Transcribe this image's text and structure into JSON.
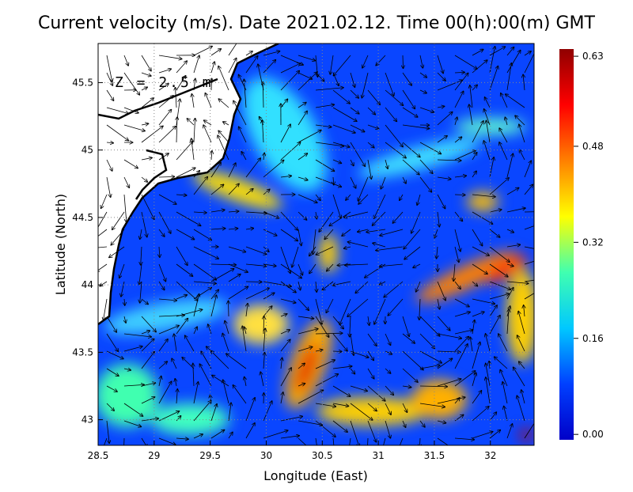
{
  "chart_data": {
    "type": "heatmap",
    "title": "Current velocity (m/s). Date 2021.02.12. Time 00(h):00(m) GMT",
    "annotation": "Z = 2.5 m",
    "xlabel": "Longitude (East)",
    "ylabel": "Latitude (North)",
    "xlim": [
      28.5,
      32.39
    ],
    "ylim": [
      42.81,
      45.79
    ],
    "xticks": [
      28.5,
      29,
      29.5,
      30,
      30.5,
      31,
      31.5,
      32
    ],
    "yticks": [
      43,
      43.5,
      44,
      44.5,
      45,
      45.5
    ],
    "grid": true,
    "colorbar": {
      "lim": [
        -0.009,
        0.642
      ],
      "ticks": [
        {
          "value": 0,
          "label": "0.00"
        },
        0.16,
        0.32,
        0.48,
        0.63
      ],
      "colors": [
        "#0000c8",
        "#0040ff",
        "#00c8ff",
        "#40ffb0",
        "#ffff00",
        "#ff8000",
        "#ff0000",
        "#900000"
      ]
    }
  }
}
